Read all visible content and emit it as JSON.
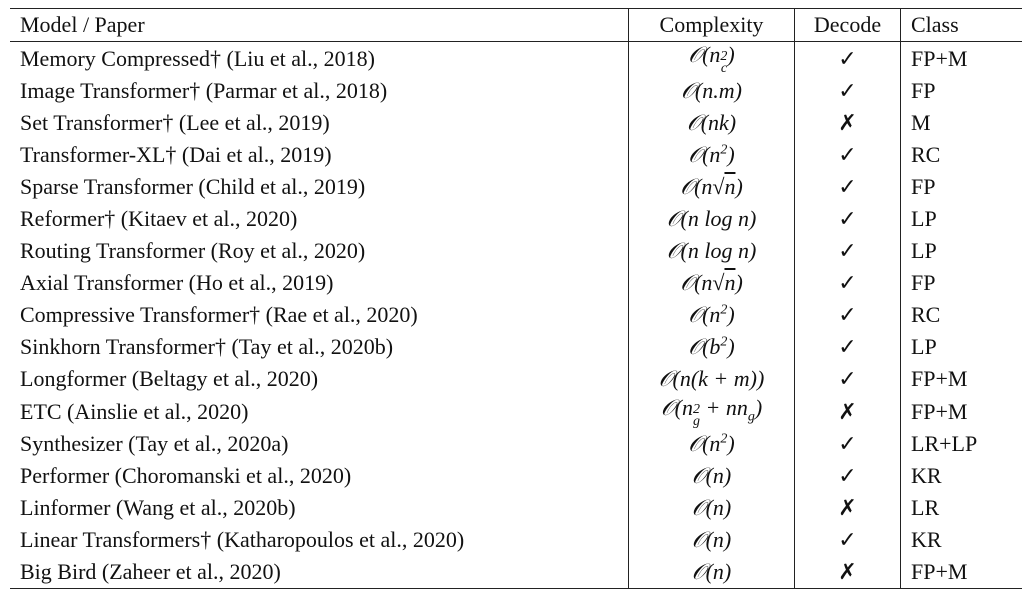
{
  "table": {
    "header": [
      "Model / Paper",
      "Complexity",
      "Decode",
      "Class"
    ],
    "rows": [
      {
        "model": "Memory Compressed† (Liu et al., 2018)",
        "complexity": [
          "𝒪(n",
          "2",
          "c",
          ")"
        ],
        "decode": "✓",
        "class": "FP+M"
      },
      {
        "model": "Image Transformer† (Parmar et al., 2018)",
        "complexity": [
          "𝒪(n.m)"
        ],
        "decode": "✓",
        "class": "FP"
      },
      {
        "model": "Set Transformer† (Lee et al., 2019)",
        "complexity": [
          "𝒪(nk)"
        ],
        "decode": "✗",
        "class": "M"
      },
      {
        "model": "Transformer-XL† (Dai et al., 2019)",
        "complexity": [
          "𝒪(n",
          "2",
          ")"
        ],
        "decode": "✓",
        "class": "RC"
      },
      {
        "model": "Sparse Transformer  (Child et al., 2019)",
        "complexity": [
          "𝒪(n√",
          "n",
          ")"
        ],
        "decode": "✓",
        "class": "FP"
      },
      {
        "model": "Reformer† (Kitaev et al., 2020)",
        "complexity": [
          "𝒪(n log n)"
        ],
        "decode": "✓",
        "class": "LP"
      },
      {
        "model": "Routing Transformer (Roy et al., 2020)",
        "complexity": [
          "𝒪(n log n)"
        ],
        "decode": "✓",
        "class": "LP"
      },
      {
        "model": "Axial Transformer (Ho et al., 2019)",
        "complexity": [
          "𝒪(n√",
          "n",
          ")"
        ],
        "decode": "✓",
        "class": "FP"
      },
      {
        "model": "Compressive Transformer† (Rae et al., 2020)",
        "complexity": [
          "𝒪(n",
          "2",
          ")"
        ],
        "decode": "✓",
        "class": "RC"
      },
      {
        "model": "Sinkhorn Transformer† (Tay et al., 2020b)",
        "complexity": [
          "𝒪(b",
          "2",
          ")"
        ],
        "decode": "✓",
        "class": "LP"
      },
      {
        "model": "Longformer (Beltagy et al., 2020)",
        "complexity": [
          "𝒪(n(k + m))"
        ],
        "decode": "✓",
        "class": "FP+M"
      },
      {
        "model": "ETC (Ainslie et al., 2020)",
        "complexity": [
          "𝒪(n",
          "2",
          "g",
          " + nn",
          "g",
          ")"
        ],
        "decode": "✗",
        "class": "FP+M"
      },
      {
        "model": "Synthesizer (Tay et al., 2020a)",
        "complexity": [
          "𝒪(n",
          "2",
          ")"
        ],
        "decode": "✓",
        "class": "LR+LP"
      },
      {
        "model": "Performer (Choromanski et al., 2020)",
        "complexity": [
          "𝒪(n)"
        ],
        "decode": "✓",
        "class": "KR"
      },
      {
        "model": "Linformer (Wang et al., 2020b)",
        "complexity": [
          "𝒪(n)"
        ],
        "decode": "✗",
        "class": "LR"
      },
      {
        "model": "Linear Transformers† (Katharopoulos et al., 2020)",
        "complexity": [
          "𝒪(n)"
        ],
        "decode": "✓",
        "class": "KR"
      },
      {
        "model": "Big Bird (Zaheer et al., 2020)",
        "complexity": [
          "𝒪(n)"
        ],
        "decode": "✗",
        "class": "FP+M"
      }
    ]
  }
}
